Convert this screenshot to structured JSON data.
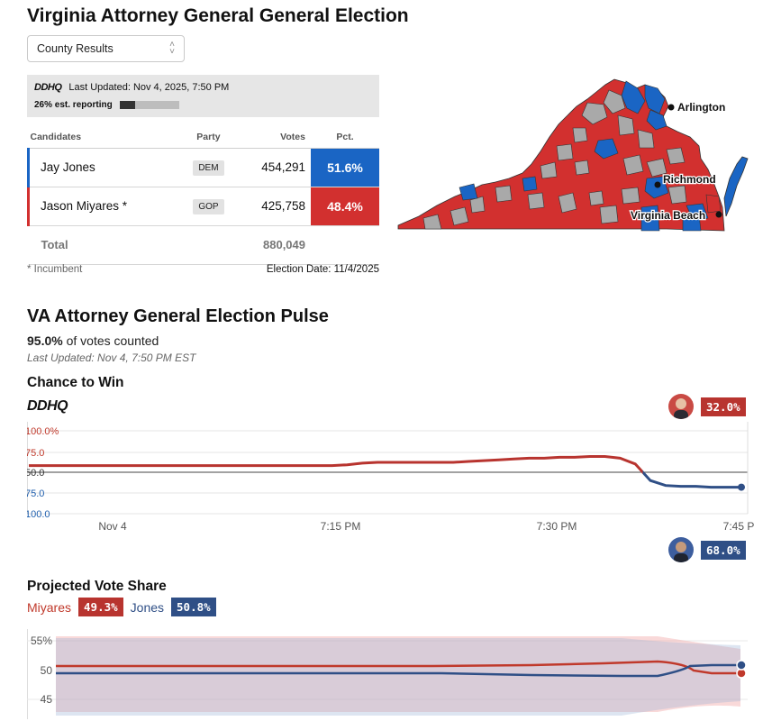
{
  "title": "Virginia Attorney General General Election",
  "selector": {
    "value": "County Results"
  },
  "status": {
    "logo": "DDHQ",
    "last_updated": "Last Updated: Nov 4, 2025, 7:50 PM",
    "reporting": "26% est. reporting",
    "reporting_fraction": 0.26
  },
  "table": {
    "headers": {
      "candidates": "Candidates",
      "party": "Party",
      "votes": "Votes",
      "pct": "Pct."
    },
    "rows": [
      {
        "name": "Jay Jones",
        "party": "DEM",
        "votes": "454,291",
        "pct": "51.6%"
      },
      {
        "name": "Jason Miyares *",
        "party": "GOP",
        "votes": "425,758",
        "pct": "48.4%"
      }
    ],
    "total_label": "Total",
    "total_votes": "880,049",
    "footnote": "* Incumbent",
    "election_date": "Election Date: 11/4/2025"
  },
  "map": {
    "cities": [
      "Arlington",
      "Richmond",
      "Virginia Beach"
    ],
    "colors": {
      "dem": "#1a65c4",
      "gop": "#d2302f",
      "none": "#a9a9a9"
    }
  },
  "pulse": {
    "title": "VA Attorney General Election Pulse",
    "counted_pct": "95.0%",
    "counted_text": "of votes counted",
    "last_updated": "Last Updated: Nov 4, 7:50 PM EST",
    "chance": {
      "title": "Chance to Win",
      "logo": "DDHQ",
      "gop_value": "32.0%",
      "dem_value": "68.0%",
      "y_ticks": [
        "100.0%",
        "75.0",
        "50.0",
        "75.0",
        "100.0"
      ],
      "x_ticks": [
        "Nov 4",
        "7:15 PM",
        "7:30 PM",
        "7:45 P"
      ],
      "gop_series": [
        58,
        58,
        58,
        58,
        58,
        58,
        58,
        58,
        58,
        58,
        58,
        58,
        58,
        58,
        58,
        58,
        58,
        58,
        58,
        58,
        58,
        59,
        61,
        62,
        62,
        62,
        62,
        62,
        62,
        63,
        64,
        65,
        66,
        67,
        67,
        68,
        68,
        69,
        69,
        67,
        60,
        40,
        34,
        33,
        33,
        32,
        32,
        32
      ]
    },
    "vote_share": {
      "title": "Projected Vote Share",
      "gop_name": "Miyares",
      "gop_value": "49.3%",
      "dem_name": "Jones",
      "dem_value": "50.8%",
      "y_ticks": [
        "55%",
        "50",
        "45"
      ]
    }
  }
}
